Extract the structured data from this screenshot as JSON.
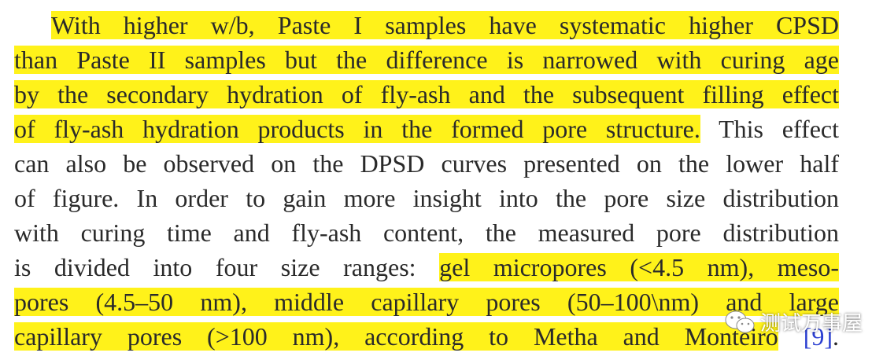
{
  "lines": [
    {
      "indent": true,
      "segments": [
        {
          "text": "With higher w/b, Paste I samples have systematic higher CPSD",
          "highlight": true
        }
      ]
    },
    {
      "segments": [
        {
          "text": "than Paste II samples but the difference is narrowed with curing age",
          "highlight": true
        }
      ]
    },
    {
      "segments": [
        {
          "text": "by the secondary hydration of fly-ash and the subsequent filling effect",
          "highlight": true
        }
      ]
    },
    {
      "segments": [
        {
          "text": "of fly-ash hydration products in the formed pore structure.",
          "highlight": true
        },
        {
          "text": " This effect"
        }
      ]
    },
    {
      "segments": [
        {
          "text": "can also be observed on the DPSD curves presented on the lower half"
        }
      ]
    },
    {
      "segments": [
        {
          "text": "of figure. In order to gain more insight into the pore size distribution"
        }
      ]
    },
    {
      "segments": [
        {
          "text": "with curing time and fly-ash content, the measured pore distribution"
        }
      ]
    },
    {
      "segments": [
        {
          "text": "is divided into four size ranges: "
        },
        {
          "text": "gel micropores (<4.5 nm), meso-",
          "highlight": true
        }
      ]
    },
    {
      "segments": [
        {
          "text": "pores (4.5–50 nm), middle capillary pores (50–100\\nm) and large",
          "highlight": true
        }
      ]
    },
    {
      "segments": [
        {
          "text": "capillary pores (>100 nm), according to Metha and Monteiro",
          "highlight": true
        },
        {
          "text": " [9]",
          "color": "#2b3fd1"
        },
        {
          "text": "."
        }
      ]
    }
  ],
  "watermark": "测试万事屋"
}
